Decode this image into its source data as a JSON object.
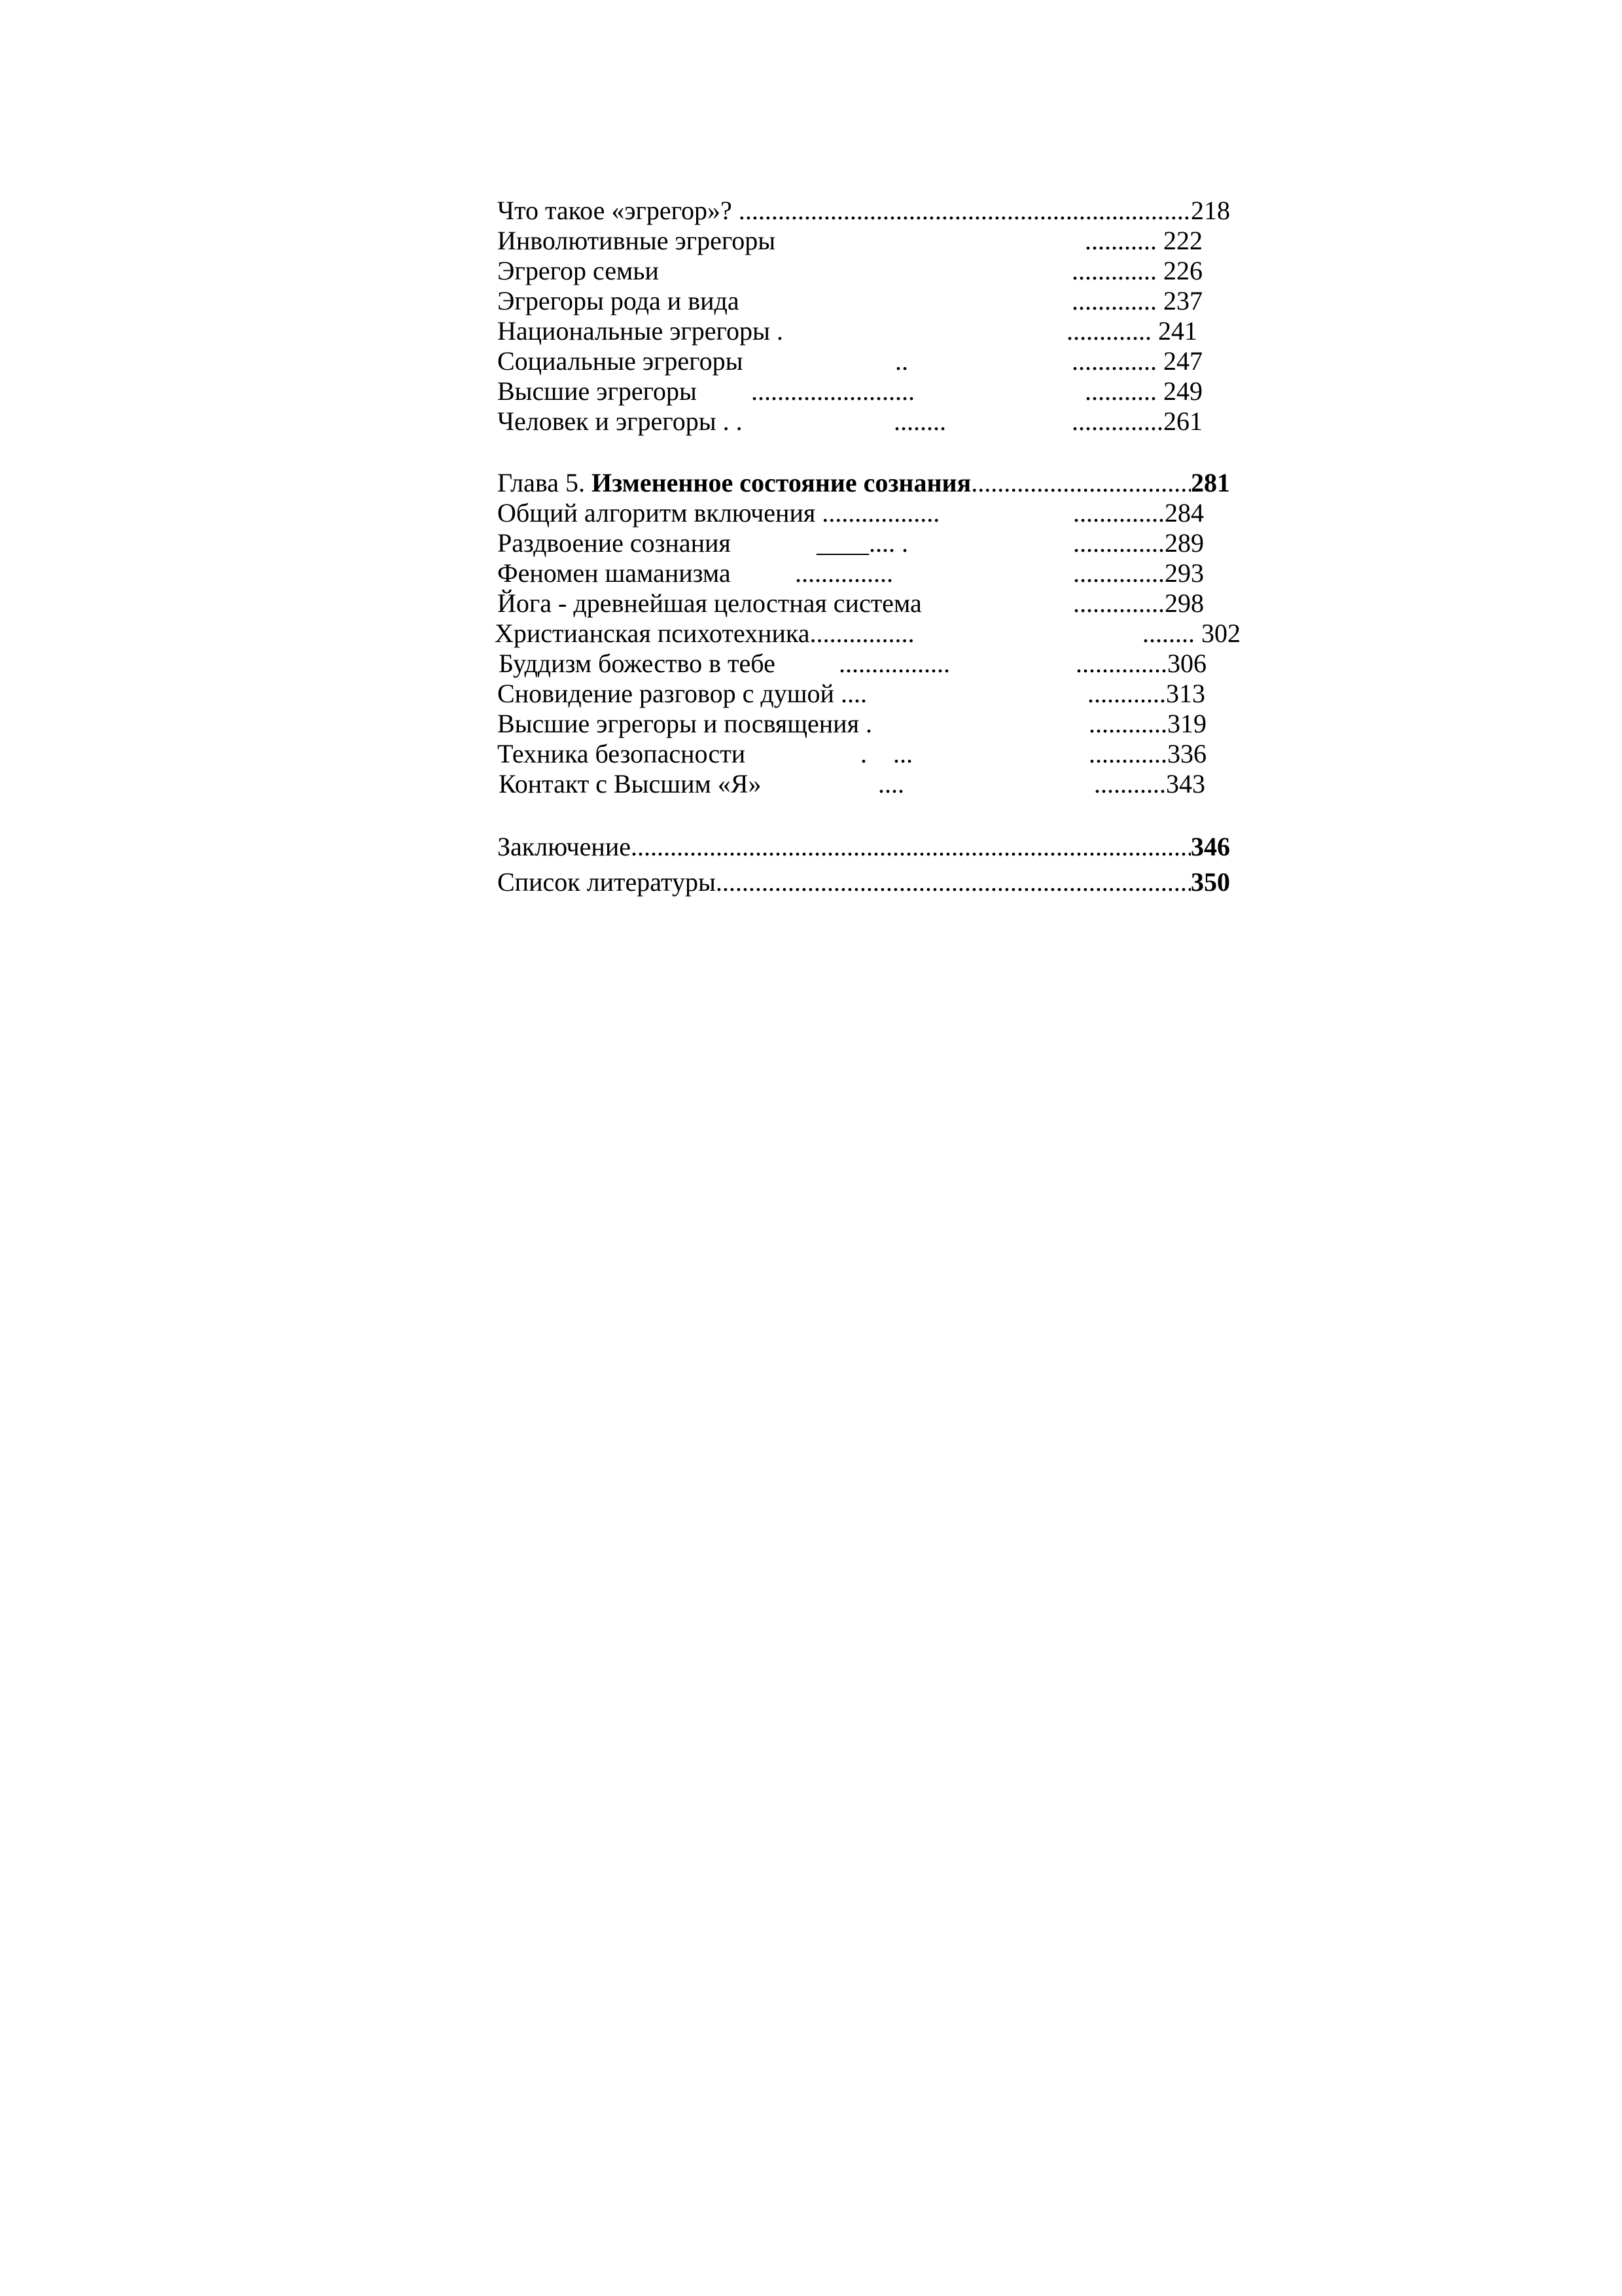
{
  "section_4_entries": [
    {
      "title": "Что такое «эгрегор»? .",
      "page": "218"
    },
    {
      "title": "Инволютивные эгрегоры",
      "mid": "",
      "right": "........... 222"
    },
    {
      "title": "Эгрегор семьи",
      "mid": "",
      "right": "............. 226"
    },
    {
      "title": "Эгрегоры рода и вида",
      "mid": "",
      "right": "............. 237"
    },
    {
      "title": "Национальные эгрегоры .",
      "mid": "",
      "right": "............. 241"
    },
    {
      "title": "Социальные эгрегоры",
      "mid": "..",
      "right": "............. 247"
    },
    {
      "title": "Высшие эгрегоры",
      "mid": ".........................",
      "right": "........... 249"
    },
    {
      "title": "Человек и эгрегоры .  .",
      "mid": "........",
      "right": "..............261"
    }
  ],
  "chapter_5": {
    "prefix": "Глава 5.",
    "title": "Измененное состояние сознания",
    "page": "281"
  },
  "section_5_entries": [
    {
      "title": "Общий алгоритм включения ..................",
      "mid": "",
      "right": "..............284"
    },
    {
      "title": "Раздвоение сознания",
      "mid": "____....  .",
      "right": "..............289"
    },
    {
      "title": "Феномен шаманизма",
      "mid": "...............",
      "right": "..............293"
    },
    {
      "title": "Йога - древнейшая целостная система",
      "mid": "",
      "right": "..............298"
    },
    {
      "title": "Христианская психотехника................",
      "mid": "",
      "right": "........ 302"
    },
    {
      "title": "Буддизм божество в тебе",
      "mid": ".................",
      "right": "..............306"
    },
    {
      "title": "Сновидение разговор с душой ....",
      "mid": "",
      "right": "............313"
    },
    {
      "title": "Высшие эгрегоры и посвящения .",
      "mid": "",
      "right": "............319"
    },
    {
      "title": "Техника безопасности",
      "mid": ".    ...",
      "right": "............336"
    },
    {
      "title": "Контакт с Высшим «Я»",
      "mid": "....",
      "right": "...........343"
    }
  ],
  "conclusion": {
    "title": "Заключение",
    "page": "346"
  },
  "bibliography": {
    "title": "Список литературы",
    "page": "350"
  }
}
